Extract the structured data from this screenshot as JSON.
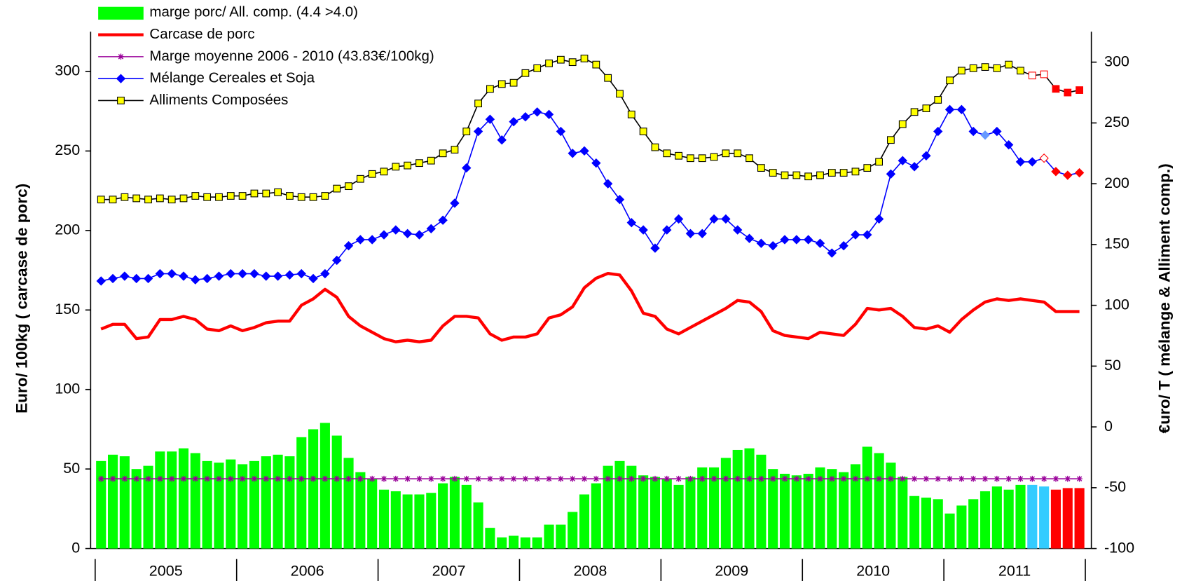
{
  "chart_data": {
    "type": "combo",
    "y_label": "Euro/ 100kg ( carcase de porc)",
    "y2_label": "€uro/ T ( mélange & Alliment comp.)",
    "ylim": [
      0,
      325
    ],
    "yticks": [
      0,
      50,
      100,
      150,
      200,
      250,
      300
    ],
    "y2lim": [
      -100,
      325
    ],
    "y2ticks": [
      -100,
      -50,
      0,
      50,
      100,
      150,
      200,
      250,
      300
    ],
    "legend": "top-left",
    "categories": [
      "2005",
      null,
      null,
      null,
      null,
      null,
      null,
      null,
      null,
      null,
      null,
      null,
      "2006",
      null,
      null,
      null,
      null,
      null,
      null,
      null,
      null,
      null,
      null,
      null,
      "2007",
      null,
      null,
      null,
      null,
      null,
      null,
      null,
      null,
      null,
      null,
      null,
      "2008",
      null,
      null,
      null,
      null,
      null,
      null,
      null,
      null,
      null,
      null,
      null,
      "2009",
      null,
      null,
      null,
      null,
      null,
      null,
      null,
      null,
      null,
      null,
      null,
      "2010",
      null,
      null,
      null,
      null,
      null,
      null,
      null,
      null,
      null,
      null,
      null,
      "2011",
      null,
      null,
      null,
      null,
      null,
      null,
      null,
      null,
      null,
      null,
      null
    ],
    "series": [
      {
        "name": "marge porc/ All. comp. (4.4 >4.0)",
        "type": "bar",
        "color": "#00ff00",
        "values": [
          55,
          59,
          58,
          50,
          52,
          61,
          61,
          63,
          60,
          55,
          54,
          56,
          53,
          55,
          58,
          59,
          58,
          70,
          75,
          79,
          71,
          57,
          48,
          44,
          37,
          36,
          34,
          34,
          35,
          41,
          45,
          40,
          29,
          13,
          7,
          8,
          7,
          7,
          15,
          15,
          23,
          34,
          41,
          52,
          55,
          52,
          46,
          45,
          44,
          40,
          45,
          51,
          51,
          57,
          62,
          63,
          59,
          50,
          47,
          46,
          47,
          51,
          50,
          48,
          53,
          64,
          60,
          54,
          45,
          33,
          32,
          31,
          22,
          27,
          31,
          36,
          39,
          37,
          40,
          40,
          39,
          37,
          38,
          38
        ],
        "colors": [
          "#00ff00",
          "#00ff00",
          "#00ff00",
          "#00ff00",
          "#00ff00",
          "#00ff00",
          "#00ff00",
          "#00ff00",
          "#00ff00",
          "#00ff00",
          "#00ff00",
          "#00ff00",
          "#00ff00",
          "#00ff00",
          "#00ff00",
          "#00ff00",
          "#00ff00",
          "#00ff00",
          "#00ff00",
          "#00ff00",
          "#00ff00",
          "#00ff00",
          "#00ff00",
          "#00ff00",
          "#00ff00",
          "#00ff00",
          "#00ff00",
          "#00ff00",
          "#00ff00",
          "#00ff00",
          "#00ff00",
          "#00ff00",
          "#00ff00",
          "#00ff00",
          "#00ff00",
          "#00ff00",
          "#00ff00",
          "#00ff00",
          "#00ff00",
          "#00ff00",
          "#00ff00",
          "#00ff00",
          "#00ff00",
          "#00ff00",
          "#00ff00",
          "#00ff00",
          "#00ff00",
          "#00ff00",
          "#00ff00",
          "#00ff00",
          "#00ff00",
          "#00ff00",
          "#00ff00",
          "#00ff00",
          "#00ff00",
          "#00ff00",
          "#00ff00",
          "#00ff00",
          "#00ff00",
          "#00ff00",
          "#00ff00",
          "#00ff00",
          "#00ff00",
          "#00ff00",
          "#00ff00",
          "#00ff00",
          "#00ff00",
          "#00ff00",
          "#00ff00",
          "#00ff00",
          "#00ff00",
          "#00ff00",
          "#00ff00",
          "#00ff00",
          "#00ff00",
          "#00ff00",
          "#00ff00",
          "#00ff00",
          "#00ff00",
          "#33ccff",
          "#33ccff",
          "#ff0000",
          "#ff0000",
          "#ff0000"
        ]
      },
      {
        "name": "Carcase de porc",
        "type": "line",
        "color": "#ff0000",
        "line_width": 4,
        "marker": null,
        "values": [
          138,
          141,
          141,
          132,
          133,
          144,
          144,
          146,
          144,
          138,
          137,
          140,
          137,
          139,
          142,
          143,
          143,
          153,
          157,
          163,
          158,
          146,
          140,
          136,
          132,
          130,
          131,
          130,
          131,
          140,
          146,
          146,
          145,
          135,
          131,
          133,
          133,
          135,
          145,
          147,
          152,
          164,
          170,
          173,
          172,
          162,
          148,
          146,
          138,
          135,
          139,
          143,
          147,
          151,
          156,
          155,
          149,
          137,
          134,
          133,
          132,
          136,
          135,
          134,
          141,
          151,
          150,
          151,
          146,
          139,
          138,
          140,
          136,
          144,
          150,
          155,
          157,
          156,
          157,
          156,
          155,
          149,
          149,
          149
        ]
      },
      {
        "name": "Marge moyenne 2006 - 2010 (43.83€/100kg)",
        "type": "line",
        "color": "#990099",
        "line_width": 1.5,
        "marker": "star",
        "values": [
          43.83,
          43.83,
          43.83,
          43.83,
          43.83,
          43.83,
          43.83,
          43.83,
          43.83,
          43.83,
          43.83,
          43.83,
          43.83,
          43.83,
          43.83,
          43.83,
          43.83,
          43.83,
          43.83,
          43.83,
          43.83,
          43.83,
          43.83,
          43.83,
          43.83,
          43.83,
          43.83,
          43.83,
          43.83,
          43.83,
          43.83,
          43.83,
          43.83,
          43.83,
          43.83,
          43.83,
          43.83,
          43.83,
          43.83,
          43.83,
          43.83,
          43.83,
          43.83,
          43.83,
          43.83,
          43.83,
          43.83,
          43.83,
          43.83,
          43.83,
          43.83,
          43.83,
          43.83,
          43.83,
          43.83,
          43.83,
          43.83,
          43.83,
          43.83,
          43.83,
          43.83,
          43.83,
          43.83,
          43.83,
          43.83,
          43.83,
          43.83,
          43.83,
          43.83,
          43.83,
          43.83,
          43.83,
          43.83,
          43.83,
          43.83,
          43.83,
          43.83,
          43.83,
          43.83,
          43.83,
          43.83,
          43.83,
          43.83,
          43.83
        ]
      },
      {
        "name": "Mélange Cereales et Soja",
        "type": "line",
        "axis": "y2",
        "color": "#0000ff",
        "line_width": 1.5,
        "marker": "diamond",
        "values": [
          120,
          122,
          124,
          122,
          122,
          126,
          126,
          124,
          121,
          122,
          124,
          126,
          126,
          126,
          124,
          124,
          125,
          126,
          122,
          126,
          137,
          149,
          154,
          154,
          158,
          162,
          159,
          158,
          163,
          170,
          184,
          213,
          243,
          253,
          236,
          251,
          255,
          259,
          257,
          243,
          225,
          227,
          217,
          200,
          187,
          168,
          162,
          147,
          162,
          171,
          159,
          159,
          171,
          171,
          162,
          155,
          151,
          149,
          154,
          154,
          154,
          151,
          143,
          149,
          158,
          158,
          171,
          208,
          219,
          214,
          223,
          243,
          261,
          261,
          243,
          240,
          243,
          232,
          218,
          218,
          221,
          210,
          207,
          209
        ],
        "marker_colors": [
          "#0000ff",
          "#0000ff",
          "#0000ff",
          "#0000ff",
          "#0000ff",
          "#0000ff",
          "#0000ff",
          "#0000ff",
          "#0000ff",
          "#0000ff",
          "#0000ff",
          "#0000ff",
          "#0000ff",
          "#0000ff",
          "#0000ff",
          "#0000ff",
          "#0000ff",
          "#0000ff",
          "#0000ff",
          "#0000ff",
          "#0000ff",
          "#0000ff",
          "#0000ff",
          "#0000ff",
          "#0000ff",
          "#0000ff",
          "#0000ff",
          "#0000ff",
          "#0000ff",
          "#0000ff",
          "#0000ff",
          "#0000ff",
          "#0000ff",
          "#0000ff",
          "#0000ff",
          "#0000ff",
          "#0000ff",
          "#0000ff",
          "#0000ff",
          "#0000ff",
          "#0000ff",
          "#0000ff",
          "#0000ff",
          "#0000ff",
          "#0000ff",
          "#0000ff",
          "#0000ff",
          "#0000ff",
          "#0000ff",
          "#0000ff",
          "#0000ff",
          "#0000ff",
          "#0000ff",
          "#0000ff",
          "#0000ff",
          "#0000ff",
          "#0000ff",
          "#0000ff",
          "#0000ff",
          "#0000ff",
          "#0000ff",
          "#0000ff",
          "#0000ff",
          "#0000ff",
          "#0000ff",
          "#0000ff",
          "#0000ff",
          "#0000ff",
          "#0000ff",
          "#0000ff",
          "#0000ff",
          "#0000ff",
          "#0000ff",
          "#0000ff",
          "#0000ff",
          "#6699ff",
          "#0000ff",
          "#0000ff",
          "#0000ff",
          "#0000ff",
          "#ffffff",
          "#ff0000",
          "#ff0000",
          "#ff0000"
        ],
        "marker_edge_colors": [
          "#0000ff",
          "#0000ff",
          "#0000ff",
          "#0000ff",
          "#0000ff",
          "#0000ff",
          "#0000ff",
          "#0000ff",
          "#0000ff",
          "#0000ff",
          "#0000ff",
          "#0000ff",
          "#0000ff",
          "#0000ff",
          "#0000ff",
          "#0000ff",
          "#0000ff",
          "#0000ff",
          "#0000ff",
          "#0000ff",
          "#0000ff",
          "#0000ff",
          "#0000ff",
          "#0000ff",
          "#0000ff",
          "#0000ff",
          "#0000ff",
          "#0000ff",
          "#0000ff",
          "#0000ff",
          "#0000ff",
          "#0000ff",
          "#0000ff",
          "#0000ff",
          "#0000ff",
          "#0000ff",
          "#0000ff",
          "#0000ff",
          "#0000ff",
          "#0000ff",
          "#0000ff",
          "#0000ff",
          "#0000ff",
          "#0000ff",
          "#0000ff",
          "#0000ff",
          "#0000ff",
          "#0000ff",
          "#0000ff",
          "#0000ff",
          "#0000ff",
          "#0000ff",
          "#0000ff",
          "#0000ff",
          "#0000ff",
          "#0000ff",
          "#0000ff",
          "#0000ff",
          "#0000ff",
          "#0000ff",
          "#0000ff",
          "#0000ff",
          "#0000ff",
          "#0000ff",
          "#0000ff",
          "#0000ff",
          "#0000ff",
          "#0000ff",
          "#0000ff",
          "#0000ff",
          "#0000ff",
          "#0000ff",
          "#0000ff",
          "#0000ff",
          "#0000ff",
          "#6699ff",
          "#0000ff",
          "#0000ff",
          "#0000ff",
          "#0000ff",
          "#ff0000",
          "#ff0000",
          "#ff0000",
          "#ff0000"
        ]
      },
      {
        "name": "Alliments Composées",
        "type": "line",
        "axis": "y2",
        "color": "#000000",
        "line_width": 1.5,
        "marker": "square",
        "values": [
          187,
          187,
          189,
          188,
          187,
          188,
          187,
          188,
          190,
          189,
          189,
          190,
          190,
          192,
          192,
          193,
          190,
          189,
          189,
          190,
          196,
          198,
          204,
          208,
          210,
          214,
          215,
          217,
          219,
          225,
          228,
          243,
          266,
          278,
          282,
          283,
          291,
          295,
          299,
          302,
          300,
          303,
          298,
          287,
          274,
          257,
          243,
          230,
          225,
          223,
          221,
          221,
          222,
          225,
          225,
          221,
          213,
          209,
          207,
          207,
          206,
          207,
          209,
          209,
          210,
          213,
          218,
          236,
          249,
          259,
          262,
          269,
          285,
          293,
          295,
          296,
          295,
          298,
          293,
          289,
          290,
          278,
          275,
          277
        ],
        "marker_colors": [
          "#ffff00",
          "#ffff00",
          "#ffff00",
          "#ffff00",
          "#ffff00",
          "#ffff00",
          "#ffff00",
          "#ffff00",
          "#ffff00",
          "#ffff00",
          "#ffff00",
          "#ffff00",
          "#ffff00",
          "#ffff00",
          "#ffff00",
          "#ffff00",
          "#ffff00",
          "#ffff00",
          "#ffff00",
          "#ffff00",
          "#ffff00",
          "#ffff00",
          "#ffff00",
          "#ffff00",
          "#ffff00",
          "#ffff00",
          "#ffff00",
          "#ffff00",
          "#ffff00",
          "#ffff00",
          "#ffff00",
          "#ffff00",
          "#ffff00",
          "#ffff00",
          "#ffff00",
          "#ffff00",
          "#ffff00",
          "#ffff00",
          "#ffff00",
          "#ffff00",
          "#ffff00",
          "#ffff00",
          "#ffff00",
          "#ffff00",
          "#ffff00",
          "#ffff00",
          "#ffff00",
          "#ffff00",
          "#ffff00",
          "#ffff00",
          "#ffff00",
          "#ffff00",
          "#ffff00",
          "#ffff00",
          "#ffff00",
          "#ffff00",
          "#ffff00",
          "#ffff00",
          "#ffff00",
          "#ffff00",
          "#ffff00",
          "#ffff00",
          "#ffff00",
          "#ffff00",
          "#ffff00",
          "#ffff00",
          "#ffff00",
          "#ffff00",
          "#ffff00",
          "#ffff00",
          "#ffff00",
          "#ffff00",
          "#ffff00",
          "#ffff00",
          "#ffff00",
          "#ffff00",
          "#ffff00",
          "#ffff00",
          "#ffff00",
          "#ffffff",
          "#ffffff",
          "#ff0000",
          "#ff0000",
          "#ff0000"
        ],
        "marker_edge_colors": [
          "#000000",
          "#000000",
          "#000000",
          "#000000",
          "#000000",
          "#000000",
          "#000000",
          "#000000",
          "#000000",
          "#000000",
          "#000000",
          "#000000",
          "#000000",
          "#000000",
          "#000000",
          "#000000",
          "#000000",
          "#000000",
          "#000000",
          "#000000",
          "#000000",
          "#000000",
          "#000000",
          "#000000",
          "#000000",
          "#000000",
          "#000000",
          "#000000",
          "#000000",
          "#000000",
          "#000000",
          "#000000",
          "#000000",
          "#000000",
          "#000000",
          "#000000",
          "#000000",
          "#000000",
          "#000000",
          "#000000",
          "#000000",
          "#000000",
          "#000000",
          "#000000",
          "#000000",
          "#000000",
          "#000000",
          "#000000",
          "#000000",
          "#000000",
          "#000000",
          "#000000",
          "#000000",
          "#000000",
          "#000000",
          "#000000",
          "#000000",
          "#000000",
          "#000000",
          "#000000",
          "#000000",
          "#000000",
          "#000000",
          "#000000",
          "#000000",
          "#000000",
          "#000000",
          "#000000",
          "#000000",
          "#000000",
          "#000000",
          "#000000",
          "#000000",
          "#000000",
          "#000000",
          "#000000",
          "#000000",
          "#000000",
          "#000000",
          "#ff0000",
          "#ff0000",
          "#ff0000",
          "#ff0000",
          "#ff0000"
        ]
      }
    ]
  }
}
